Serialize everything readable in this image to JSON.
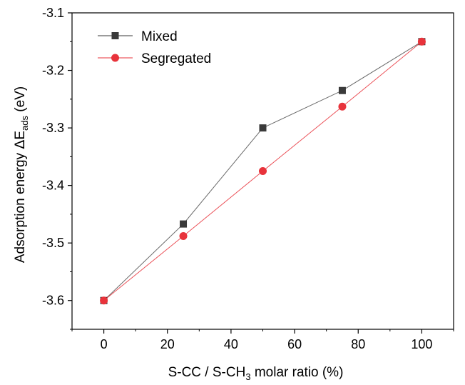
{
  "chart_data": {
    "type": "line",
    "x": [
      0,
      25,
      50,
      75,
      100
    ],
    "series": [
      {
        "name": "Mixed",
        "values": [
          -3.6,
          -3.467,
          -3.3,
          -3.235,
          -3.15
        ],
        "color": "#3a3a3a",
        "marker": "square"
      },
      {
        "name": "Segregated",
        "values": [
          -3.6,
          -3.488,
          -3.375,
          -3.263,
          -3.15
        ],
        "color": "#e8333b",
        "marker": "circle"
      }
    ],
    "xlabel": {
      "pre": "S-CC / S-CH",
      "sub": "3",
      "post": " molar ratio (%)"
    },
    "ylabel": {
      "pre": "Adsorption energy ",
      "delta": "Δ",
      "E": "E",
      "sub": "ads",
      "post": " (eV)"
    },
    "xlim": [
      -10,
      110
    ],
    "ylim": [
      -3.65,
      -3.1
    ],
    "xticks": [
      0,
      20,
      40,
      60,
      80,
      100
    ],
    "xtick_labels": [
      "0",
      "20",
      "40",
      "60",
      "80",
      "100"
    ],
    "yticks": [
      -3.6,
      -3.5,
      -3.4,
      -3.3,
      -3.2,
      -3.1
    ],
    "ytick_labels": [
      "-3.6",
      "-3.5",
      "-3.4",
      "-3.3",
      "-3.2",
      "-3.1"
    ],
    "legend": {
      "placement": "top-left"
    },
    "grid": false
  }
}
